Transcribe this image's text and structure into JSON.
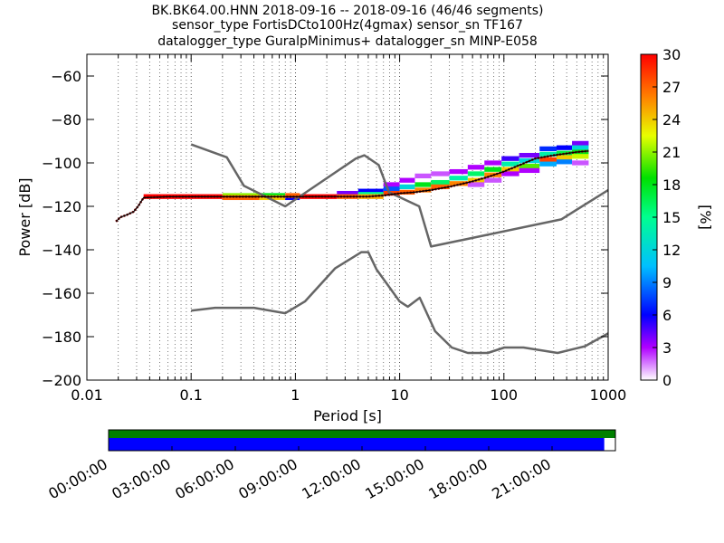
{
  "chart_data": {
    "type": "heatmap",
    "title_lines": [
      "BK.BK64.00.HNN   2018-09-16 -- 2018-09-16  (46/46 segments)",
      "sensor_type FortisDCto100Hz(4gmax) sensor_sn TF167",
      "datalogger_type GuralpMinimus+ datalogger_sn MINP-E058"
    ],
    "xlabel": "Period [s]",
    "ylabel": "Power [dB]",
    "x_scale": "log",
    "xlim": [
      0.01,
      1000
    ],
    "ylim": [
      -200,
      -50
    ],
    "x_ticks": [
      0.01,
      0.1,
      1,
      10,
      100,
      1000
    ],
    "x_tick_labels": [
      "0.01",
      "0.1",
      "1",
      "10",
      "100",
      "1000"
    ],
    "y_ticks": [
      -200,
      -180,
      -160,
      -140,
      -120,
      -100,
      -80,
      -60
    ],
    "y_tick_labels": [
      "−200",
      "−180",
      "−160",
      "−140",
      "−120",
      "−100",
      "−80",
      "−60"
    ],
    "grid": "dotted-vertical",
    "colorbar": {
      "label": "[%]",
      "range": [
        0,
        30
      ],
      "ticks": [
        0,
        3,
        6,
        9,
        12,
        15,
        18,
        21,
        24,
        27,
        30
      ],
      "tick_labels": [
        "0",
        "3",
        "6",
        "9",
        "12",
        "15",
        "18",
        "21",
        "24",
        "27",
        "30"
      ],
      "colormap": "pqlx"
    },
    "nhnm": {
      "name": "New High Noise Model",
      "x": [
        0.1,
        0.22,
        0.32,
        0.8,
        3.8,
        4.6,
        6.3,
        7.9,
        15.4,
        20,
        354.8,
        1000
      ],
      "y": [
        -91.5,
        -97.4,
        -110.5,
        -120,
        -98,
        -96.5,
        -101,
        -113.5,
        -120,
        -138.5,
        -126,
        -112.5
      ]
    },
    "nlnm": {
      "name": "New Low Noise Model",
      "x": [
        0.1,
        0.17,
        0.4,
        0.8,
        1.24,
        2.4,
        4.3,
        5,
        6,
        10,
        12,
        15.6,
        21.9,
        31.6,
        45,
        70,
        101,
        154,
        328,
        600,
        1000
      ],
      "y": [
        -168,
        -166.7,
        -166.7,
        -169.2,
        -163.7,
        -148.6,
        -141.1,
        -141.1,
        -149,
        -163.8,
        -166.2,
        -162.1,
        -177.5,
        -185,
        -187.5,
        -187.5,
        -185,
        -185,
        -187.5,
        -184.4,
        -178.5
      ]
    },
    "mode_line": {
      "name": "mode",
      "x": [
        0.019,
        0.021,
        0.024,
        0.028,
        0.031,
        0.035,
        0.06,
        0.2,
        1,
        2,
        3,
        5,
        7,
        10,
        14,
        20,
        30,
        50,
        70,
        100,
        150,
        200,
        300,
        500,
        650
      ],
      "y": [
        -127,
        -125,
        -124,
        -122.5,
        -120,
        -116,
        -115.6,
        -115.6,
        -115.6,
        -115.5,
        -115.5,
        -115.5,
        -115,
        -114,
        -113.5,
        -112.5,
        -111,
        -108.5,
        -106.5,
        -104,
        -100.5,
        -98,
        -96.5,
        -95,
        -94.5
      ]
    },
    "psd_cells": [
      {
        "x0": 0.035,
        "x1": 0.2,
        "y": -115.5,
        "p": 30
      },
      {
        "x0": 0.2,
        "x1": 0.45,
        "y": -115,
        "p": 21
      },
      {
        "x0": 0.2,
        "x1": 0.45,
        "y": -116,
        "p": 27
      },
      {
        "x0": 0.45,
        "x1": 0.8,
        "y": -115,
        "p": 18
      },
      {
        "x0": 0.45,
        "x1": 0.8,
        "y": -116,
        "p": 24
      },
      {
        "x0": 0.8,
        "x1": 1.1,
        "y": -116,
        "p": 6
      },
      {
        "x0": 0.8,
        "x1": 1.1,
        "y": -115,
        "p": 27
      },
      {
        "x0": 1.1,
        "x1": 2.5,
        "y": -115.5,
        "p": 30
      },
      {
        "x0": 2.5,
        "x1": 4,
        "y": -114,
        "p": 4
      },
      {
        "x0": 2.5,
        "x1": 4,
        "y": -115.5,
        "p": 27
      },
      {
        "x0": 4,
        "x1": 7,
        "y": -113,
        "p": 6
      },
      {
        "x0": 4,
        "x1": 7,
        "y": -114.5,
        "p": 15
      },
      {
        "x0": 4,
        "x1": 7,
        "y": -115.5,
        "p": 25
      },
      {
        "x0": 7,
        "x1": 10,
        "y": -110,
        "p": 3
      },
      {
        "x0": 7,
        "x1": 10,
        "y": -112,
        "p": 8
      },
      {
        "x0": 7,
        "x1": 10,
        "y": -114,
        "p": 28
      },
      {
        "x0": 10,
        "x1": 14,
        "y": -108,
        "p": 3
      },
      {
        "x0": 10,
        "x1": 14,
        "y": -111,
        "p": 12
      },
      {
        "x0": 10,
        "x1": 14,
        "y": -113.5,
        "p": 27
      },
      {
        "x0": 14,
        "x1": 20,
        "y": -106,
        "p": 2
      },
      {
        "x0": 14,
        "x1": 20,
        "y": -110,
        "p": 18
      },
      {
        "x0": 14,
        "x1": 20,
        "y": -112.5,
        "p": 26
      },
      {
        "x0": 20,
        "x1": 30,
        "y": -105,
        "p": 2
      },
      {
        "x0": 20,
        "x1": 30,
        "y": -109,
        "p": 16
      },
      {
        "x0": 20,
        "x1": 30,
        "y": -111,
        "p": 27
      },
      {
        "x0": 30,
        "x1": 45,
        "y": -104,
        "p": 3
      },
      {
        "x0": 30,
        "x1": 45,
        "y": -107,
        "p": 14
      },
      {
        "x0": 30,
        "x1": 45,
        "y": -109.5,
        "p": 26
      },
      {
        "x0": 45,
        "x1": 65,
        "y": -102,
        "p": 3
      },
      {
        "x0": 45,
        "x1": 65,
        "y": -105,
        "p": 16
      },
      {
        "x0": 45,
        "x1": 65,
        "y": -108,
        "p": 24
      },
      {
        "x0": 45,
        "x1": 65,
        "y": -110,
        "p": 2
      },
      {
        "x0": 65,
        "x1": 95,
        "y": -100,
        "p": 3
      },
      {
        "x0": 65,
        "x1": 95,
        "y": -103,
        "p": 18
      },
      {
        "x0": 65,
        "x1": 95,
        "y": -105.5,
        "p": 26
      },
      {
        "x0": 65,
        "x1": 95,
        "y": -108,
        "p": 2
      },
      {
        "x0": 95,
        "x1": 140,
        "y": -98,
        "p": 5
      },
      {
        "x0": 95,
        "x1": 140,
        "y": -100.5,
        "p": 14
      },
      {
        "x0": 95,
        "x1": 140,
        "y": -103,
        "p": 24
      },
      {
        "x0": 95,
        "x1": 140,
        "y": -105,
        "p": 3
      },
      {
        "x0": 140,
        "x1": 220,
        "y": -96.5,
        "p": 4
      },
      {
        "x0": 140,
        "x1": 220,
        "y": -99,
        "p": 12
      },
      {
        "x0": 140,
        "x1": 220,
        "y": -101.5,
        "p": 20
      },
      {
        "x0": 140,
        "x1": 220,
        "y": -103.5,
        "p": 3
      },
      {
        "x0": 220,
        "x1": 320,
        "y": -93.5,
        "p": 7
      },
      {
        "x0": 220,
        "x1": 320,
        "y": -96,
        "p": 14
      },
      {
        "x0": 220,
        "x1": 320,
        "y": -98.5,
        "p": 28
      },
      {
        "x0": 220,
        "x1": 320,
        "y": -100.5,
        "p": 10
      },
      {
        "x0": 320,
        "x1": 450,
        "y": -93,
        "p": 6
      },
      {
        "x0": 320,
        "x1": 450,
        "y": -95.5,
        "p": 17
      },
      {
        "x0": 320,
        "x1": 450,
        "y": -97.5,
        "p": 24
      },
      {
        "x0": 320,
        "x1": 450,
        "y": -99.5,
        "p": 9
      },
      {
        "x0": 450,
        "x1": 650,
        "y": -91,
        "p": 4
      },
      {
        "x0": 450,
        "x1": 650,
        "y": -93,
        "p": 12
      },
      {
        "x0": 450,
        "x1": 650,
        "y": -95,
        "p": 18
      },
      {
        "x0": 450,
        "x1": 650,
        "y": -97,
        "p": 22
      },
      {
        "x0": 450,
        "x1": 650,
        "y": -100,
        "p": 2
      }
    ],
    "time_axis": {
      "tick_labels": [
        "00:00:00",
        "03:00:00",
        "06:00:00",
        "09:00:00",
        "12:00:00",
        "15:00:00",
        "18:00:00",
        "21:00:00"
      ],
      "data_coverage_fraction": 1.0,
      "gaps_coverage_fraction": 0.978,
      "data_color": "#008000",
      "coverage_color": "#0000ff"
    },
    "colors": {
      "nhnm": "#666666",
      "nlnm": "#666666",
      "mode_line": "#000000"
    }
  }
}
